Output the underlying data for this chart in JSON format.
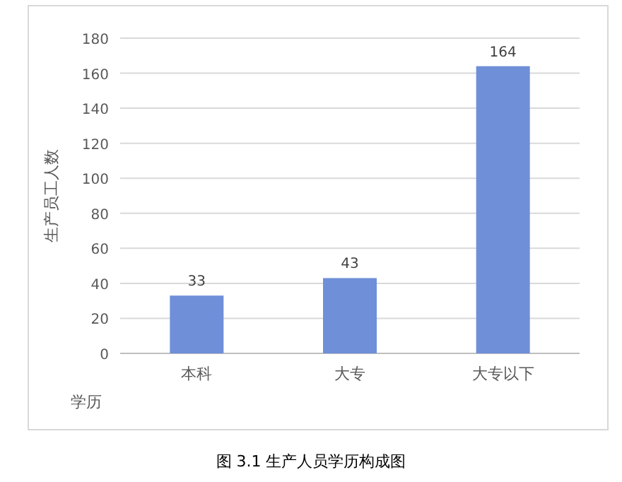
{
  "chart_data": {
    "type": "bar",
    "title": "图 3.1 生产人员学历构成图",
    "xlabel": "学历",
    "ylabel": "生产员工人数",
    "categories": [
      "本科",
      "大专",
      "大专以下"
    ],
    "values": [
      33,
      43,
      164
    ],
    "color": "#6f8fd8",
    "ylim": [
      0,
      180
    ],
    "yticks": [
      0,
      20,
      40,
      60,
      80,
      100,
      120,
      140,
      160,
      180
    ],
    "grid": "y",
    "data_labels": true
  }
}
